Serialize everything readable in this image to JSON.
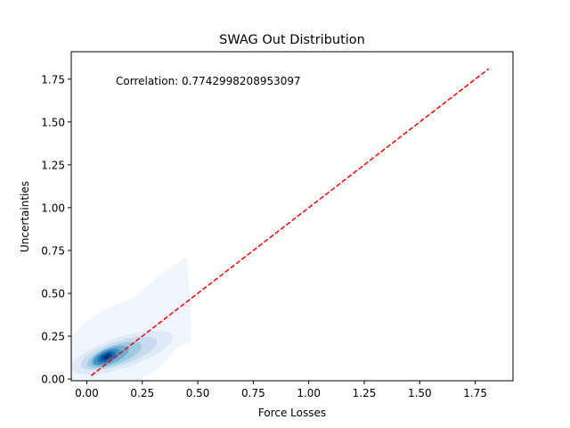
{
  "chart_data": {
    "type": "kde-contour",
    "title": "SWAG Out Distribution",
    "xlabel": "Force Losses",
    "ylabel": "Uncertainties",
    "xlim": [
      -0.07,
      1.92
    ],
    "ylim": [
      -0.01,
      1.91
    ],
    "xticks": [
      0.0,
      0.25,
      0.5,
      0.75,
      1.0,
      1.25,
      1.5,
      1.75
    ],
    "xtick_labels": [
      "0.00",
      "0.25",
      "0.50",
      "0.75",
      "1.00",
      "1.25",
      "1.50",
      "1.75"
    ],
    "yticks": [
      0.0,
      0.25,
      0.5,
      0.75,
      1.0,
      1.25,
      1.5,
      1.75
    ],
    "ytick_labels": [
      "0.00",
      "0.25",
      "0.50",
      "0.75",
      "1.00",
      "1.25",
      "1.50",
      "1.75"
    ],
    "annotation": "Correlation: 0.7742998208953097",
    "reference_line": {
      "x": [
        0.02,
        1.81
      ],
      "y": [
        0.02,
        1.81
      ],
      "color": "#ff0000",
      "style": "dashed"
    },
    "density_peak": {
      "x": 0.09,
      "y": 0.13
    },
    "colormap": "Blues",
    "grid": false
  }
}
